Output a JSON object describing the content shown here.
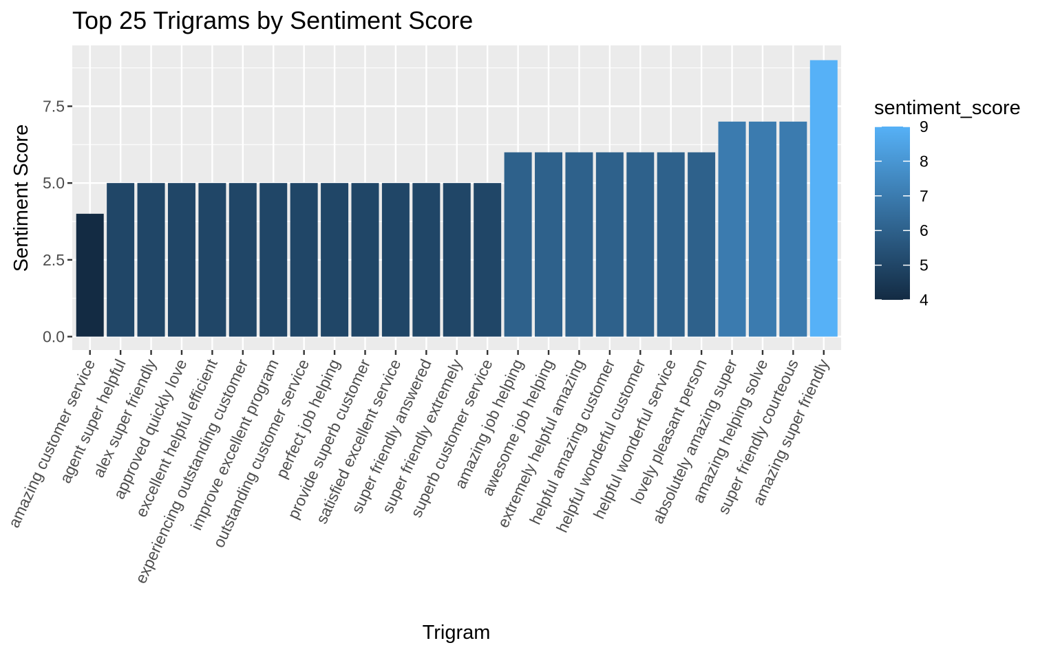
{
  "chart_data": {
    "type": "bar",
    "title": "Top 25 Trigrams by Sentiment Score",
    "xlabel": "Trigram",
    "ylabel": "Sentiment Score",
    "categories": [
      "amazing customer service",
      "agent super helpful",
      "alex super friendly",
      "approved quickly love",
      "excellent helpful efficient",
      "experiencing outstanding customer",
      "improve excellent program",
      "outstanding customer service",
      "perfect job helping",
      "provide superb customer",
      "satisfied excellent service",
      "super friendly answered",
      "super friendly extremely",
      "superb customer service",
      "amazing job helping",
      "awesome job helping",
      "extremely helpful amazing",
      "helpful amazing customer",
      "helpful wonderful customer",
      "helpful wonderful service",
      "lovely pleasant person",
      "absolutely amazing super",
      "amazing helping solve",
      "super friendly courteous",
      "amazing super friendly"
    ],
    "values": [
      4,
      5,
      5,
      5,
      5,
      5,
      5,
      5,
      5,
      5,
      5,
      5,
      5,
      5,
      6,
      6,
      6,
      6,
      6,
      6,
      6,
      7,
      7,
      7,
      9
    ],
    "ylim": [
      0,
      9.45
    ],
    "yticks": [
      0.0,
      2.5,
      5.0,
      7.5
    ],
    "ytick_labels": [
      "0.0",
      "2.5",
      "5.0",
      "7.5"
    ],
    "grid": true,
    "legend": {
      "title": "sentiment_score",
      "position": "right",
      "min": 4,
      "max": 9,
      "ticks": [
        "4",
        "5",
        "6",
        "7",
        "8",
        "9"
      ],
      "color_low": "#132B43",
      "color_high": "#56B1F7"
    },
    "panel_background": "#EBEBEB",
    "grid_color": "#FFFFFF"
  }
}
